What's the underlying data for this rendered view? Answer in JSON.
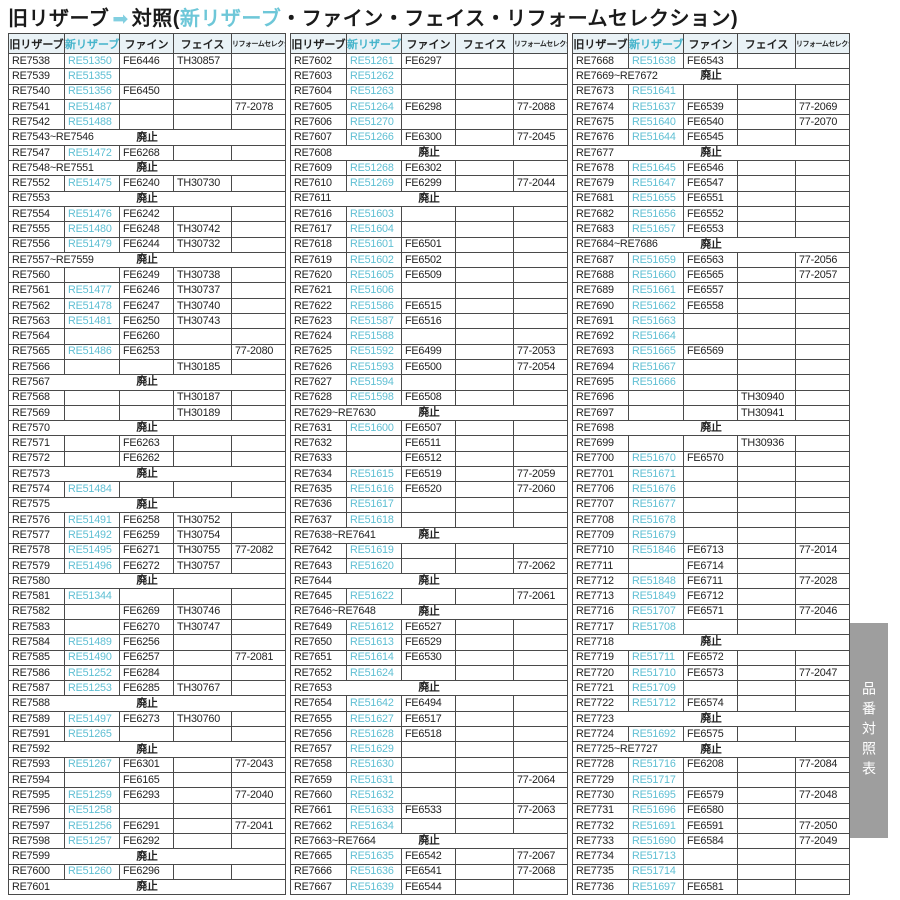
{
  "title": {
    "prefix": "旧リザーブ",
    "arrow_icon": "➡",
    "mid": "対照(",
    "highlight": "新リザーブ",
    "suffix": "・ファイン・フェイス・リフォームセレクション)"
  },
  "labels": {
    "discontinued": "廃止"
  },
  "side_tab": "品番対照表",
  "colors": {
    "accent_cyan": "#5fbfd3",
    "title_cyan": "#6ec7d8",
    "header_bg": "#e9f2f6",
    "tab_gray": "#9e9e9e",
    "border": "#4a4a4a"
  },
  "columns": [
    "旧リザーブ",
    "新リザーブ",
    "ファイン",
    "フェイス",
    "リフォームセレクション"
  ],
  "tables": [
    {
      "rows": [
        [
          "RE7538",
          "RE51350",
          "FE6446",
          "TH30857",
          ""
        ],
        [
          "RE7539",
          "RE51355",
          "",
          "",
          ""
        ],
        [
          "RE7540",
          "RE51356",
          "FE6450",
          "",
          ""
        ],
        [
          "RE7541",
          "RE51487",
          "",
          "",
          "77-2078"
        ],
        [
          "RE7542",
          "RE51488",
          "",
          "",
          ""
        ],
        {
          "range": "RE7543~RE7546"
        },
        [
          "RE7547",
          "RE51472",
          "FE6268",
          "",
          ""
        ],
        {
          "range": "RE7548~RE7551"
        },
        [
          "RE7552",
          "RE51475",
          "FE6240",
          "TH30730",
          ""
        ],
        {
          "range": "RE7553"
        },
        [
          "RE7554",
          "RE51476",
          "FE6242",
          "",
          ""
        ],
        [
          "RE7555",
          "RE51480",
          "FE6248",
          "TH30742",
          ""
        ],
        [
          "RE7556",
          "RE51479",
          "FE6244",
          "TH30732",
          ""
        ],
        {
          "range": "RE7557~RE7559"
        },
        [
          "RE7560",
          "",
          "FE6249",
          "TH30738",
          ""
        ],
        [
          "RE7561",
          "RE51477",
          "FE6246",
          "TH30737",
          ""
        ],
        [
          "RE7562",
          "RE51478",
          "FE6247",
          "TH30740",
          ""
        ],
        [
          "RE7563",
          "RE51481",
          "FE6250",
          "TH30743",
          ""
        ],
        [
          "RE7564",
          "",
          "FE6260",
          "",
          ""
        ],
        [
          "RE7565",
          "RE51486",
          "FE6253",
          "",
          "77-2080"
        ],
        [
          "RE7566",
          "",
          "",
          "TH30185",
          ""
        ],
        {
          "range": "RE7567"
        },
        [
          "RE7568",
          "",
          "",
          "TH30187",
          ""
        ],
        [
          "RE7569",
          "",
          "",
          "TH30189",
          ""
        ],
        {
          "range": "RE7570"
        },
        [
          "RE7571",
          "",
          "FE6263",
          "",
          ""
        ],
        [
          "RE7572",
          "",
          "FE6262",
          "",
          ""
        ],
        {
          "range": "RE7573"
        },
        [
          "RE7574",
          "RE51484",
          "",
          "",
          ""
        ],
        {
          "range": "RE7575"
        },
        [
          "RE7576",
          "RE51491",
          "FE6258",
          "TH30752",
          ""
        ],
        [
          "RE7577",
          "RE51492",
          "FE6259",
          "TH30754",
          ""
        ],
        [
          "RE7578",
          "RE51495",
          "FE6271",
          "TH30755",
          "77-2082"
        ],
        [
          "RE7579",
          "RE51496",
          "FE6272",
          "TH30757",
          ""
        ],
        {
          "range": "RE7580"
        },
        [
          "RE7581",
          "RE51344",
          "",
          "",
          ""
        ],
        [
          "RE7582",
          "",
          "FE6269",
          "TH30746",
          ""
        ],
        [
          "RE7583",
          "",
          "FE6270",
          "TH30747",
          ""
        ],
        [
          "RE7584",
          "RE51489",
          "FE6256",
          "",
          ""
        ],
        [
          "RE7585",
          "RE51490",
          "FE6257",
          "",
          "77-2081"
        ],
        [
          "RE7586",
          "RE51252",
          "FE6284",
          "",
          ""
        ],
        [
          "RE7587",
          "RE51253",
          "FE6285",
          "TH30767",
          ""
        ],
        {
          "range": "RE7588"
        },
        [
          "RE7589",
          "RE51497",
          "FE6273",
          "TH30760",
          ""
        ],
        [
          "RE7591",
          "RE51265",
          "",
          "",
          ""
        ],
        {
          "range": "RE7592"
        },
        [
          "RE7593",
          "RE51267",
          "FE6301",
          "",
          "77-2043"
        ],
        [
          "RE7594",
          "",
          "FE6165",
          "",
          ""
        ],
        [
          "RE7595",
          "RE51259",
          "FE6293",
          "",
          "77-2040"
        ],
        [
          "RE7596",
          "RE51258",
          "",
          "",
          ""
        ],
        [
          "RE7597",
          "RE51256",
          "FE6291",
          "",
          "77-2041"
        ],
        [
          "RE7598",
          "RE51257",
          "FE6292",
          "",
          ""
        ],
        {
          "range": "RE7599"
        },
        [
          "RE7600",
          "RE51260",
          "FE6296",
          "",
          ""
        ],
        {
          "range": "RE7601"
        }
      ]
    },
    {
      "rows": [
        [
          "RE7602",
          "RE51261",
          "FE6297",
          "",
          ""
        ],
        [
          "RE7603",
          "RE51262",
          "",
          "",
          ""
        ],
        [
          "RE7604",
          "RE51263",
          "",
          "",
          ""
        ],
        [
          "RE7605",
          "RE51264",
          "FE6298",
          "",
          "77-2088"
        ],
        [
          "RE7606",
          "RE51270",
          "",
          "",
          ""
        ],
        [
          "RE7607",
          "RE51266",
          "FE6300",
          "",
          "77-2045"
        ],
        {
          "range": "RE7608"
        },
        [
          "RE7609",
          "RE51268",
          "FE6302",
          "",
          ""
        ],
        [
          "RE7610",
          "RE51269",
          "FE6299",
          "",
          "77-2044"
        ],
        {
          "range": "RE7611"
        },
        [
          "RE7616",
          "RE51603",
          "",
          "",
          ""
        ],
        [
          "RE7617",
          "RE51604",
          "",
          "",
          ""
        ],
        [
          "RE7618",
          "RE51601",
          "FE6501",
          "",
          ""
        ],
        [
          "RE7619",
          "RE51602",
          "FE6502",
          "",
          ""
        ],
        [
          "RE7620",
          "RE51605",
          "FE6509",
          "",
          ""
        ],
        [
          "RE7621",
          "RE51606",
          "",
          "",
          ""
        ],
        [
          "RE7622",
          "RE51586",
          "FE6515",
          "",
          ""
        ],
        [
          "RE7623",
          "RE51587",
          "FE6516",
          "",
          ""
        ],
        [
          "RE7624",
          "RE51588",
          "",
          "",
          ""
        ],
        [
          "RE7625",
          "RE51592",
          "FE6499",
          "",
          "77-2053"
        ],
        [
          "RE7626",
          "RE51593",
          "FE6500",
          "",
          "77-2054"
        ],
        [
          "RE7627",
          "RE51594",
          "",
          "",
          ""
        ],
        [
          "RE7628",
          "RE51598",
          "FE6508",
          "",
          ""
        ],
        {
          "range": "RE7629~RE7630"
        },
        [
          "RE7631",
          "RE51600",
          "FE6507",
          "",
          ""
        ],
        [
          "RE7632",
          "",
          "FE6511",
          "",
          ""
        ],
        [
          "RE7633",
          "",
          "FE6512",
          "",
          ""
        ],
        [
          "RE7634",
          "RE51615",
          "FE6519",
          "",
          "77-2059"
        ],
        [
          "RE7635",
          "RE51616",
          "FE6520",
          "",
          "77-2060"
        ],
        [
          "RE7636",
          "RE51617",
          "",
          "",
          ""
        ],
        [
          "RE7637",
          "RE51618",
          "",
          "",
          ""
        ],
        {
          "range": "RE7638~RE7641"
        },
        [
          "RE7642",
          "RE51619",
          "",
          "",
          ""
        ],
        [
          "RE7643",
          "RE51620",
          "",
          "",
          "77-2062"
        ],
        {
          "range": "RE7644"
        },
        [
          "RE7645",
          "RE51622",
          "",
          "",
          "77-2061"
        ],
        {
          "range": "RE7646~RE7648"
        },
        [
          "RE7649",
          "RE51612",
          "FE6527",
          "",
          ""
        ],
        [
          "RE7650",
          "RE51613",
          "FE6529",
          "",
          ""
        ],
        [
          "RE7651",
          "RE51614",
          "FE6530",
          "",
          ""
        ],
        [
          "RE7652",
          "RE51624",
          "",
          "",
          ""
        ],
        {
          "range": "RE7653"
        },
        [
          "RE7654",
          "RE51642",
          "FE6494",
          "",
          ""
        ],
        [
          "RE7655",
          "RE51627",
          "FE6517",
          "",
          ""
        ],
        [
          "RE7656",
          "RE51628",
          "FE6518",
          "",
          ""
        ],
        [
          "RE7657",
          "RE51629",
          "",
          "",
          ""
        ],
        [
          "RE7658",
          "RE51630",
          "",
          "",
          ""
        ],
        [
          "RE7659",
          "RE51631",
          "",
          "",
          "77-2064"
        ],
        [
          "RE7660",
          "RE51632",
          "",
          "",
          ""
        ],
        [
          "RE7661",
          "RE51633",
          "FE6533",
          "",
          "77-2063"
        ],
        [
          "RE7662",
          "RE51634",
          "",
          "",
          ""
        ],
        {
          "range": "RE7663~RE7664"
        },
        [
          "RE7665",
          "RE51635",
          "FE6542",
          "",
          "77-2067"
        ],
        [
          "RE7666",
          "RE51636",
          "FE6541",
          "",
          "77-2068"
        ],
        [
          "RE7667",
          "RE51639",
          "FE6544",
          "",
          ""
        ]
      ]
    },
    {
      "rows": [
        [
          "RE7668",
          "RE51638",
          "FE6543",
          "",
          ""
        ],
        {
          "range": "RE7669~RE7672"
        },
        [
          "RE7673",
          "RE51641",
          "",
          "",
          ""
        ],
        [
          "RE7674",
          "RE51637",
          "FE6539",
          "",
          "77-2069"
        ],
        [
          "RE7675",
          "RE51640",
          "FE6540",
          "",
          "77-2070"
        ],
        [
          "RE7676",
          "RE51644",
          "FE6545",
          "",
          ""
        ],
        {
          "range": "RE7677"
        },
        [
          "RE7678",
          "RE51645",
          "FE6546",
          "",
          ""
        ],
        [
          "RE7679",
          "RE51647",
          "FE6547",
          "",
          ""
        ],
        [
          "RE7681",
          "RE51655",
          "FE6551",
          "",
          ""
        ],
        [
          "RE7682",
          "RE51656",
          "FE6552",
          "",
          ""
        ],
        [
          "RE7683",
          "RE51657",
          "FE6553",
          "",
          ""
        ],
        {
          "range": "RE7684~RE7686"
        },
        [
          "RE7687",
          "RE51659",
          "FE6563",
          "",
          "77-2056"
        ],
        [
          "RE7688",
          "RE51660",
          "FE6565",
          "",
          "77-2057"
        ],
        [
          "RE7689",
          "RE51661",
          "FE6557",
          "",
          ""
        ],
        [
          "RE7690",
          "RE51662",
          "FE6558",
          "",
          ""
        ],
        [
          "RE7691",
          "RE51663",
          "",
          "",
          ""
        ],
        [
          "RE7692",
          "RE51664",
          "",
          "",
          ""
        ],
        [
          "RE7693",
          "RE51665",
          "FE6569",
          "",
          ""
        ],
        [
          "RE7694",
          "RE51667",
          "",
          "",
          ""
        ],
        [
          "RE7695",
          "RE51666",
          "",
          "",
          ""
        ],
        [
          "RE7696",
          "",
          "",
          "TH30940",
          ""
        ],
        [
          "RE7697",
          "",
          "",
          "TH30941",
          ""
        ],
        {
          "range": "RE7698"
        },
        [
          "RE7699",
          "",
          "",
          "TH30936",
          ""
        ],
        [
          "RE7700",
          "RE51670",
          "FE6570",
          "",
          ""
        ],
        [
          "RE7701",
          "RE51671",
          "",
          "",
          ""
        ],
        [
          "RE7706",
          "RE51676",
          "",
          "",
          ""
        ],
        [
          "RE7707",
          "RE51677",
          "",
          "",
          ""
        ],
        [
          "RE7708",
          "RE51678",
          "",
          "",
          ""
        ],
        [
          "RE7709",
          "RE51679",
          "",
          "",
          ""
        ],
        [
          "RE7710",
          "RE51846",
          "FE6713",
          "",
          "77-2014"
        ],
        [
          "RE7711",
          "",
          "FE6714",
          "",
          ""
        ],
        [
          "RE7712",
          "RE51848",
          "FE6711",
          "",
          "77-2028"
        ],
        [
          "RE7713",
          "RE51849",
          "FE6712",
          "",
          ""
        ],
        [
          "RE7716",
          "RE51707",
          "FE6571",
          "",
          "77-2046"
        ],
        [
          "RE7717",
          "RE51708",
          "",
          "",
          ""
        ],
        {
          "range": "RE7718"
        },
        [
          "RE7719",
          "RE51711",
          "FE6572",
          "",
          ""
        ],
        [
          "RE7720",
          "RE51710",
          "FE6573",
          "",
          "77-2047"
        ],
        [
          "RE7721",
          "RE51709",
          "",
          "",
          ""
        ],
        [
          "RE7722",
          "RE51712",
          "FE6574",
          "",
          ""
        ],
        {
          "range": "RE7723"
        },
        [
          "RE7724",
          "RE51692",
          "FE6575",
          "",
          ""
        ],
        {
          "range": "RE7725~RE7727"
        },
        [
          "RE7728",
          "RE51716",
          "FE6208",
          "",
          "77-2084"
        ],
        [
          "RE7729",
          "RE51717",
          "",
          "",
          ""
        ],
        [
          "RE7730",
          "RE51695",
          "FE6579",
          "",
          "77-2048"
        ],
        [
          "RE7731",
          "RE51696",
          "FE6580",
          "",
          ""
        ],
        [
          "RE7732",
          "RE51691",
          "FE6591",
          "",
          "77-2050"
        ],
        [
          "RE7733",
          "RE51690",
          "FE6584",
          "",
          "77-2049"
        ],
        [
          "RE7734",
          "RE51713",
          "",
          "",
          ""
        ],
        [
          "RE7735",
          "RE51714",
          "",
          "",
          ""
        ],
        [
          "RE7736",
          "RE51697",
          "FE6581",
          "",
          ""
        ]
      ]
    }
  ]
}
